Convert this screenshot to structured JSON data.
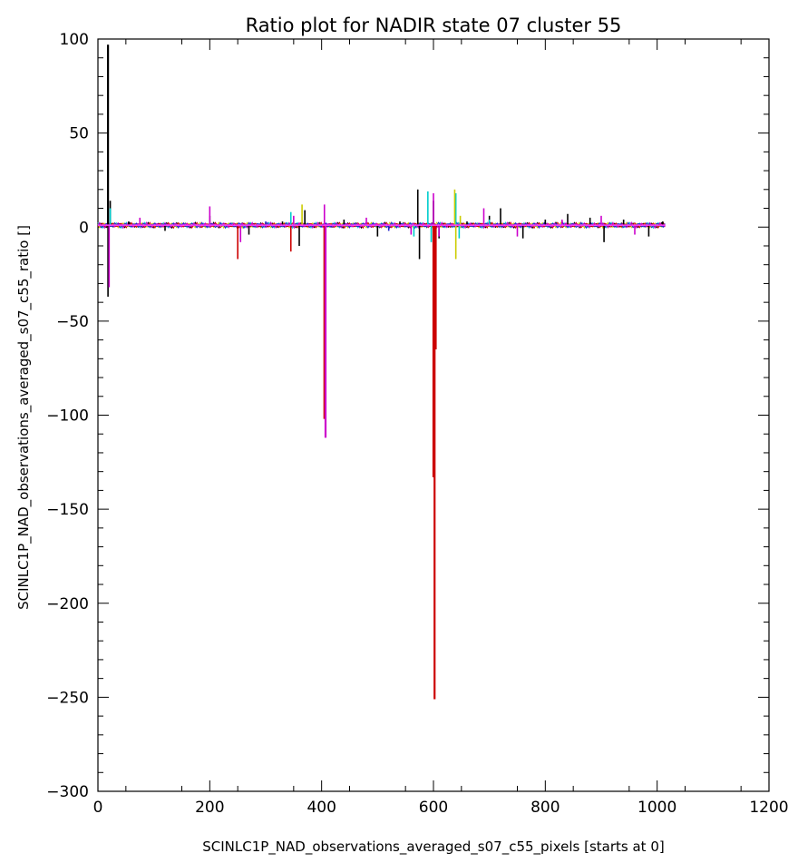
{
  "chart_data": {
    "type": "line",
    "title": "Ratio plot for NADIR state 07 cluster 55",
    "xlabel": "SCINLC1P_NAD_observations_averaged_s07_c55_pixels [starts at 0]",
    "ylabel": "SCINLC1P_NAD_observations_averaged_s07_c55_ratio []",
    "xlim": [
      0,
      1200
    ],
    "ylim": [
      -300,
      100
    ],
    "xticks": [
      0,
      200,
      400,
      600,
      800,
      1000,
      1200
    ],
    "yticks": [
      -300,
      -250,
      -200,
      -150,
      -100,
      -50,
      0,
      50,
      100
    ],
    "x_tick_labels": [
      "0",
      "200",
      "400",
      "600",
      "800",
      "1000",
      "1200"
    ],
    "y_tick_labels": [
      "−300",
      "−250",
      "−200",
      "−150",
      "−100",
      "−50",
      "0",
      "50",
      "100"
    ],
    "baseline_y": 1,
    "pixel_range": [
      0,
      1015
    ],
    "series": [
      {
        "color": "#000000",
        "spikes": [
          [
            18,
            97
          ],
          [
            18,
            -37
          ],
          [
            22,
            14
          ],
          [
            55,
            3
          ],
          [
            120,
            -2
          ],
          [
            200,
            6
          ],
          [
            270,
            -4
          ],
          [
            330,
            3
          ],
          [
            360,
            -10
          ],
          [
            370,
            9
          ],
          [
            440,
            4
          ],
          [
            500,
            -5
          ],
          [
            540,
            3
          ],
          [
            572,
            20
          ],
          [
            575,
            -17
          ],
          [
            600,
            14
          ],
          [
            610,
            -6
          ],
          [
            660,
            3
          ],
          [
            700,
            6
          ],
          [
            720,
            10
          ],
          [
            760,
            -6
          ],
          [
            800,
            4
          ],
          [
            840,
            7
          ],
          [
            880,
            5
          ],
          [
            905,
            -8
          ],
          [
            940,
            4
          ],
          [
            985,
            -5
          ],
          [
            1010,
            3
          ]
        ]
      },
      {
        "color": "#00cccc",
        "spikes": [
          [
            22,
            10
          ],
          [
            345,
            8
          ],
          [
            565,
            -5
          ],
          [
            590,
            19
          ],
          [
            596,
            -8
          ],
          [
            640,
            18
          ],
          [
            646,
            -6
          ],
          [
            700,
            4
          ]
        ]
      },
      {
        "color": "#cccc00",
        "spikes": [
          [
            365,
            12
          ],
          [
            638,
            20
          ],
          [
            640,
            -17
          ],
          [
            648,
            6
          ]
        ]
      },
      {
        "color": "#cc0000",
        "spikes": [
          [
            250,
            -17
          ],
          [
            345,
            -13
          ],
          [
            405,
            -102
          ],
          [
            600,
            -133
          ],
          [
            602,
            -251
          ],
          [
            604,
            -65
          ]
        ]
      },
      {
        "color": "#cc00cc",
        "spikes": [
          [
            20,
            -32
          ],
          [
            75,
            5
          ],
          [
            200,
            11
          ],
          [
            255,
            -8
          ],
          [
            350,
            6
          ],
          [
            405,
            12
          ],
          [
            407,
            -112
          ],
          [
            480,
            5
          ],
          [
            560,
            -4
          ],
          [
            600,
            18
          ],
          [
            610,
            -5
          ],
          [
            690,
            10
          ],
          [
            750,
            -5
          ],
          [
            830,
            4
          ],
          [
            900,
            6
          ],
          [
            960,
            -4
          ]
        ]
      },
      {
        "color": "#2020cc",
        "spikes": [
          [
            300,
            3
          ],
          [
            520,
            -2
          ],
          [
            820,
            2
          ]
        ]
      }
    ]
  }
}
